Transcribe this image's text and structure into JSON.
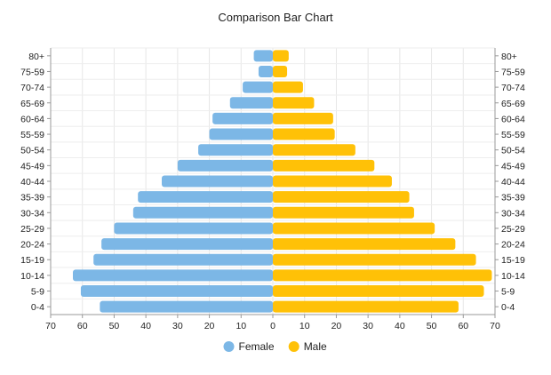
{
  "chart_data": {
    "type": "bar",
    "orientation": "horizontal",
    "layout": "diverging",
    "title": "Comparison Bar Chart",
    "categories": [
      "80+",
      "75-59",
      "70-74",
      "65-69",
      "60-64",
      "55-59",
      "50-54",
      "45-49",
      "40-44",
      "35-39",
      "30-34",
      "25-29",
      "20-24",
      "15-19",
      "10-14",
      "5-9",
      "0-4"
    ],
    "series": [
      {
        "name": "Female",
        "color": "#7cb7e6",
        "direction": "left",
        "values": [
          6,
          4.5,
          9.5,
          13.5,
          19,
          20,
          23.5,
          30,
          35,
          42.5,
          44,
          50,
          54,
          56.5,
          63,
          60.5,
          54.5
        ]
      },
      {
        "name": "Male",
        "color": "#ffc107",
        "direction": "right",
        "values": [
          5,
          4.5,
          9.5,
          13,
          19,
          19.5,
          26,
          32,
          37.5,
          43,
          44.5,
          51,
          57.5,
          64,
          69,
          66.5,
          58.5
        ]
      }
    ],
    "xlim": [
      -70,
      70
    ],
    "xticks": [
      -70,
      -60,
      -50,
      -40,
      -30,
      -20,
      -10,
      0,
      10,
      20,
      30,
      40,
      50,
      60,
      70
    ],
    "xtick_labels": [
      "70",
      "60",
      "50",
      "40",
      "30",
      "20",
      "10",
      "0",
      "10",
      "20",
      "30",
      "40",
      "50",
      "60",
      "70"
    ],
    "grid": true,
    "legend_position": "bottom-center",
    "category_labels_both_sides": true
  }
}
